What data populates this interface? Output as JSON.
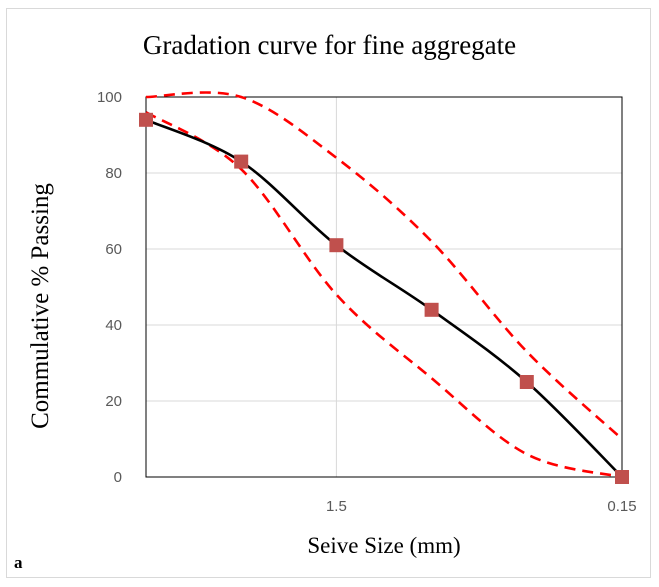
{
  "chart_data": {
    "type": "line",
    "title": "Gradation curve for fine aggregate",
    "xlabel": "Seive Size (mm)",
    "ylabel": "Commulative % Passing",
    "panel_label": "a",
    "ylim": [
      0,
      100
    ],
    "y_ticks": [
      "0",
      "20",
      "40",
      "60",
      "80",
      "100"
    ],
    "x_positions": [
      0,
      1,
      2,
      3,
      4,
      5
    ],
    "xlim": [
      0,
      5
    ],
    "x_ticks": [
      {
        "pos": 2,
        "label": "1.5"
      },
      {
        "pos": 5,
        "label": "0.15"
      }
    ],
    "grid": "major vertical and horizontal",
    "series": [
      {
        "role": "observed",
        "style": "solid-markers",
        "color": "#000000",
        "marker_color": "#c0504d",
        "values": [
          94,
          83,
          61,
          44,
          25,
          0
        ]
      },
      {
        "role": "upper-limit",
        "style": "dashed",
        "color": "#ff0000",
        "values": [
          100,
          100,
          84,
          62,
          33,
          10
        ]
      },
      {
        "role": "lower-limit",
        "style": "dashed",
        "color": "#ff0000",
        "values": [
          96,
          81,
          48,
          26,
          6,
          0
        ]
      }
    ]
  }
}
